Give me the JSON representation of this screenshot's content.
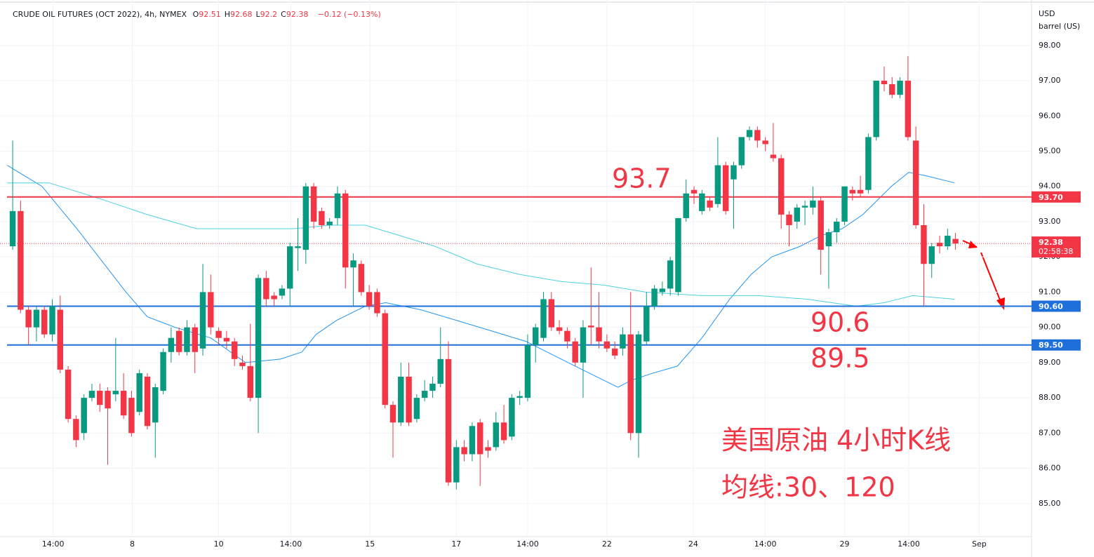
{
  "header": {
    "title": "CRUDE OIL FUTURES (OCT 2022), 4h, NYMEX",
    "ohlc": [
      {
        "key": "O",
        "value": 92.51
      },
      {
        "key": "H",
        "value": 92.68
      },
      {
        "key": "L",
        "value": 92.2
      },
      {
        "key": "C",
        "value": 92.38
      }
    ],
    "change": "−0.12 (−0.13%)"
  },
  "chart_data": {
    "type": "candlestick",
    "currency": "USD",
    "unit": "barrel (US)",
    "up_color": "#089981",
    "down_color": "#f23645",
    "open": [
      92.3,
      93.3,
      90.5,
      90.0,
      90.5,
      89.8,
      90.5,
      88.8,
      87.4,
      87.0,
      88.0,
      88.2,
      88.2,
      88.1,
      88.2,
      88.0,
      87.6,
      88.6,
      87.3,
      88.2,
      89.3,
      89.9,
      89.3,
      90.0,
      89.4,
      91.0,
      89.9,
      89.7,
      89.6,
      89.0,
      88.9,
      88.0,
      91.4,
      90.9,
      90.9,
      91.1,
      92.25,
      92.2,
      94.0,
      93.3,
      92.9,
      93.1,
      93.8,
      91.7,
      91.8,
      91.0,
      91.0,
      90.4,
      87.8,
      87.3,
      88.6,
      87.4,
      88.0,
      88.2,
      88.4,
      89.1,
      85.6,
      86.6,
      86.4,
      87.3,
      86.6,
      86.6,
      87.3,
      86.9,
      88.0,
      88.0,
      89.5,
      89.7,
      90.8,
      90.0,
      89.9,
      89.6,
      89.0,
      90.05,
      90.0,
      89.6,
      89.4,
      89.4,
      89.8,
      87.0,
      89.6,
      90.6,
      91.0,
      91.1,
      91.0,
      93.1,
      93.9,
      93.3,
      93.6,
      93.5,
      94.6,
      94.2,
      94.6,
      95.4,
      95.6,
      95.3,
      94.9,
      94.8,
      93.2,
      93.0,
      93.4,
      93.4,
      93.6,
      92.3,
      92.7,
      93.0,
      93.9,
      93.9,
      93.9,
      95.4,
      97.0,
      96.9,
      96.6,
      97.0,
      95.3,
      92.9,
      91.8,
      92.4,
      92.3,
      92.51
    ],
    "high": [
      95.3,
      93.6,
      90.6,
      90.6,
      90.6,
      90.8,
      90.9,
      88.9,
      87.5,
      88.1,
      88.4,
      88.4,
      88.3,
      89.7,
      88.7,
      88.2,
      88.8,
      88.7,
      88.4,
      89.4,
      90.0,
      90.0,
      90.2,
      90.1,
      91.8,
      91.5,
      90.0,
      89.9,
      89.7,
      89.2,
      90.1,
      91.5,
      91.6,
      91.0,
      91.2,
      92.4,
      93.1,
      94.1,
      94.1,
      93.4,
      93.1,
      94.0,
      93.9,
      92.1,
      91.9,
      91.2,
      91.1,
      90.5,
      87.9,
      89.0,
      89.0,
      88.1,
      88.5,
      88.6,
      90.0,
      89.6,
      86.8,
      86.8,
      87.3,
      87.4,
      86.8,
      87.6,
      87.8,
      88.1,
      88.2,
      89.8,
      90.1,
      91.0,
      91.0,
      90.2,
      90.0,
      89.7,
      90.2,
      91.7,
      91.0,
      89.8,
      89.6,
      90.0,
      91.0,
      89.9,
      91.0,
      91.2,
      91.3,
      92.0,
      93.1,
      94.2,
      94.0,
      93.9,
      93.7,
      95.4,
      94.7,
      94.7,
      95.4,
      95.7,
      95.7,
      95.4,
      95.8,
      94.9,
      93.3,
      93.5,
      93.6,
      94.0,
      93.7,
      92.8,
      93.1,
      94.0,
      94.0,
      94.3,
      95.5,
      97.0,
      97.4,
      97.1,
      97.1,
      97.7,
      95.7,
      93.5,
      92.4,
      92.6,
      92.8,
      92.68
    ],
    "low": [
      92.2,
      90.4,
      89.5,
      89.6,
      89.7,
      89.6,
      88.7,
      87.3,
      86.6,
      86.8,
      87.9,
      87.6,
      86.1,
      87.9,
      87.4,
      86.9,
      87.5,
      87.1,
      86.3,
      88.1,
      89.0,
      89.2,
      89.2,
      88.7,
      89.2,
      89.8,
      89.5,
      89.4,
      88.9,
      88.8,
      87.9,
      87.0,
      90.6,
      90.6,
      90.8,
      90.6,
      91.6,
      91.8,
      92.8,
      92.8,
      92.8,
      92.9,
      91.1,
      90.6,
      90.9,
      90.5,
      90.3,
      87.7,
      86.3,
      87.2,
      87.2,
      87.3,
      87.9,
      88.0,
      88.3,
      85.5,
      85.4,
      86.2,
      86.2,
      85.5,
      86.3,
      86.5,
      86.7,
      86.8,
      87.8,
      87.9,
      89.0,
      89.6,
      89.9,
      89.8,
      89.4,
      88.9,
      88.0,
      89.5,
      89.4,
      89.3,
      89.1,
      89.2,
      86.8,
      86.3,
      89.5,
      90.5,
      90.9,
      90.9,
      90.9,
      93.0,
      93.5,
      93.2,
      93.3,
      93.4,
      93.2,
      92.8,
      94.5,
      95.3,
      95.1,
      95.0,
      94.7,
      92.8,
      92.3,
      92.8,
      92.9,
      93.2,
      91.5,
      91.1,
      92.4,
      92.9,
      93.6,
      93.7,
      93.8,
      95.3,
      96.7,
      96.5,
      96.5,
      95.3,
      92.8,
      90.6,
      91.4,
      92.1,
      92.2,
      92.2
    ],
    "close": [
      93.3,
      90.5,
      90.0,
      90.5,
      89.8,
      90.6,
      88.8,
      87.4,
      86.8,
      88.0,
      88.2,
      87.8,
      87.7,
      88.2,
      87.5,
      87.0,
      88.7,
      87.2,
      88.3,
      89.3,
      89.7,
      89.3,
      90.0,
      89.3,
      91.0,
      90.0,
      89.7,
      89.6,
      89.1,
      88.9,
      88.0,
      91.4,
      90.8,
      90.8,
      91.1,
      92.3,
      92.3,
      94.0,
      93.0,
      92.9,
      93.0,
      93.8,
      91.7,
      91.9,
      91.0,
      90.6,
      90.4,
      87.8,
      87.3,
      88.6,
      87.3,
      88.0,
      88.2,
      88.4,
      89.1,
      85.6,
      86.6,
      86.4,
      87.2,
      86.4,
      86.5,
      87.3,
      86.8,
      88.0,
      88.05,
      89.5,
      90.0,
      90.8,
      90.0,
      89.9,
      89.6,
      89.0,
      90.0,
      90.0,
      89.6,
      89.4,
      89.2,
      89.8,
      87.0,
      89.8,
      90.6,
      91.1,
      91.1,
      91.9,
      93.1,
      93.8,
      93.8,
      93.8,
      93.4,
      94.6,
      93.3,
      94.6,
      95.4,
      95.6,
      95.3,
      95.2,
      94.8,
      93.2,
      92.9,
      93.4,
      93.45,
      93.6,
      92.2,
      92.7,
      93.0,
      94.0,
      93.8,
      93.8,
      95.4,
      97.0,
      96.9,
      96.6,
      97.0,
      95.4,
      92.9,
      91.8,
      92.3,
      92.3,
      92.6,
      92.38
    ],
    "series": [
      {
        "name": "MA30",
        "color": "#2196f3",
        "x": [
          -0.7,
          3.7,
          8.1,
          14.3,
          17.0,
          20.5,
          25.0,
          29.4,
          33.8,
          36.5,
          38.3,
          40.9,
          44.5,
          47.1,
          51.5,
          56.0,
          60.4,
          64.8,
          71.0,
          76.4,
          78.1,
          80.8,
          83.9,
          87.0,
          90.5,
          93.2,
          95.8,
          99.4,
          102.0,
          104.7,
          107.3,
          110.9,
          113.1,
          115.3,
          118.9
        ],
        "values": [
          94.6,
          94.0,
          92.8,
          91.0,
          90.3,
          90.0,
          89.7,
          89.0,
          89.1,
          89.3,
          89.8,
          90.2,
          90.6,
          90.7,
          90.5,
          90.2,
          89.9,
          89.6,
          88.9,
          88.3,
          88.5,
          88.7,
          88.9,
          89.7,
          90.8,
          91.5,
          92.0,
          92.3,
          92.6,
          92.8,
          93.2,
          94.0,
          94.4,
          94.3,
          94.1
        ]
      },
      {
        "name": "MA120",
        "color": "#4dd0e1",
        "x": [
          -0.7,
          4.6,
          11.7,
          17.0,
          23.2,
          31.2,
          35.6,
          40.0,
          44.5,
          48.9,
          53.3,
          58.6,
          64.0,
          69.3,
          74.6,
          79.9,
          87.0,
          94.1,
          100.3,
          106.5,
          110.0,
          113.6,
          118.9
        ],
        "values": [
          94.1,
          94.1,
          93.6,
          93.2,
          92.8,
          92.8,
          92.8,
          92.9,
          92.9,
          92.6,
          92.3,
          91.8,
          91.5,
          91.3,
          91.2,
          91.0,
          90.9,
          90.9,
          90.8,
          90.6,
          90.7,
          90.9,
          90.8
        ]
      }
    ],
    "xlim": [
      -1.6,
      128.6
    ],
    "xticks": [
      {
        "value": 5.1,
        "label": "14:00"
      },
      {
        "value": 15.1,
        "label": "8"
      },
      {
        "value": 26.0,
        "label": "10"
      },
      {
        "value": 35.1,
        "label": "14:00"
      },
      {
        "value": 45.1,
        "label": "15"
      },
      {
        "value": 56.0,
        "label": "17"
      },
      {
        "value": 65.0,
        "label": "14:00"
      },
      {
        "value": 75.0,
        "label": "22"
      },
      {
        "value": 85.9,
        "label": "24"
      },
      {
        "value": 95.0,
        "label": "14:00"
      },
      {
        "value": 105.0,
        "label": "29"
      },
      {
        "value": 113.1,
        "label": "14:00"
      },
      {
        "value": 122.0,
        "label": "Sep"
      }
    ],
    "ylim": [
      84.06,
      99.29
    ],
    "yticks": [
      {
        "value": 85,
        "label": "85.00"
      },
      {
        "value": 86,
        "label": "86.00"
      },
      {
        "value": 87,
        "label": "87.00"
      },
      {
        "value": 88,
        "label": "88.00"
      },
      {
        "value": 89,
        "label": "89.00"
      },
      {
        "value": 90,
        "label": "90.00"
      },
      {
        "value": 91,
        "label": "91.00"
      },
      {
        "value": 92,
        "label": "92.00"
      },
      {
        "value": 93,
        "label": "93.00"
      },
      {
        "value": 94,
        "label": "94.00"
      },
      {
        "value": 95,
        "label": "95.00"
      },
      {
        "value": 96,
        "label": "96.00"
      },
      {
        "value": 97,
        "label": "97.00"
      },
      {
        "value": 98,
        "label": "98.00"
      }
    ],
    "grid": true,
    "levels": [
      {
        "value": 93.7,
        "label": "93.70",
        "color": "#f23645"
      },
      {
        "value": 90.6,
        "label": "90.60",
        "color": "#1e6fd9"
      },
      {
        "value": 89.5,
        "label": "89.50",
        "color": "#1e6fd9"
      }
    ],
    "last_price": {
      "value": 92.38,
      "label": "92.38",
      "countdown": "02:58:38",
      "color": "#f23645"
    },
    "annotations": [
      "93.7",
      "90.6",
      "89.5",
      "美国原油 4小时K线",
      "均线:30、120"
    ]
  }
}
